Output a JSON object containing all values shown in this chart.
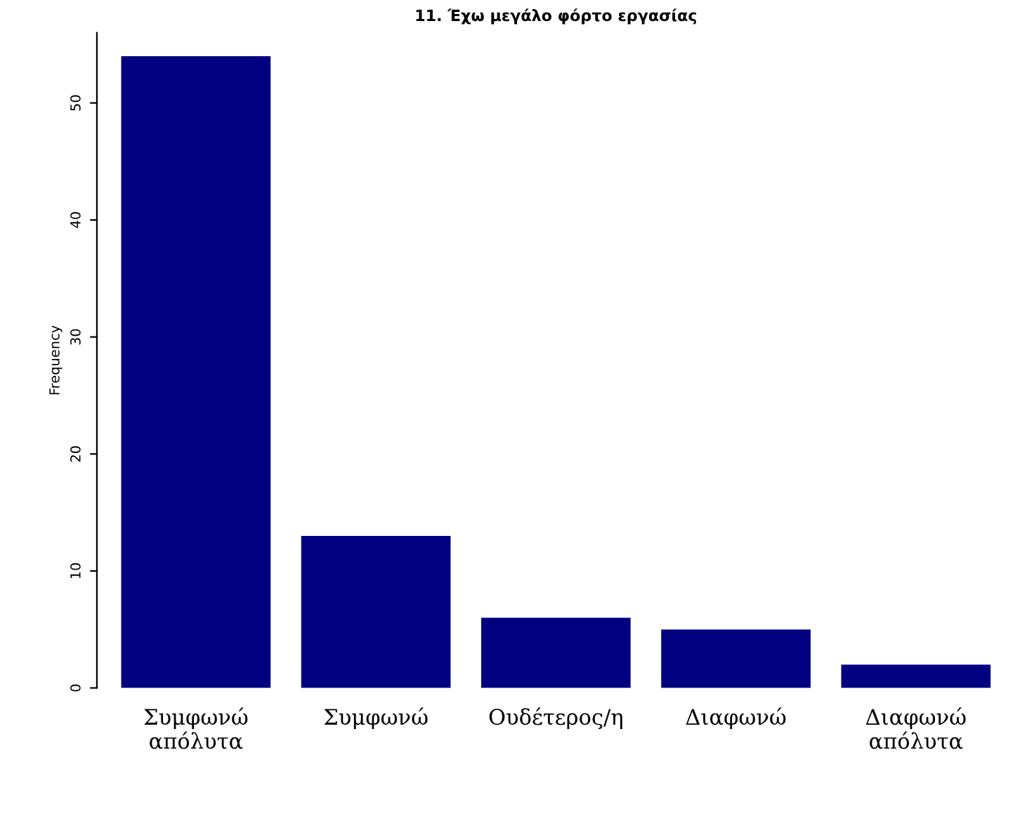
{
  "chart_data": {
    "type": "bar",
    "title": "11. Έχω μεγάλο φόρτο εργασίας",
    "ylabel": "Frequency",
    "categories": [
      "Συμφωνώ\nαπόλυτα",
      "Συμφωνώ",
      "Ουδέτερος/η",
      "Διαφωνώ",
      "Διαφωνώ\nαπόλυτα"
    ],
    "values": [
      54,
      13,
      6,
      5,
      2
    ],
    "color": "#000080",
    "ylim": [
      0,
      56
    ],
    "yticks": [
      0,
      10,
      20,
      30,
      40,
      50
    ],
    "grid": false,
    "legend": false
  }
}
